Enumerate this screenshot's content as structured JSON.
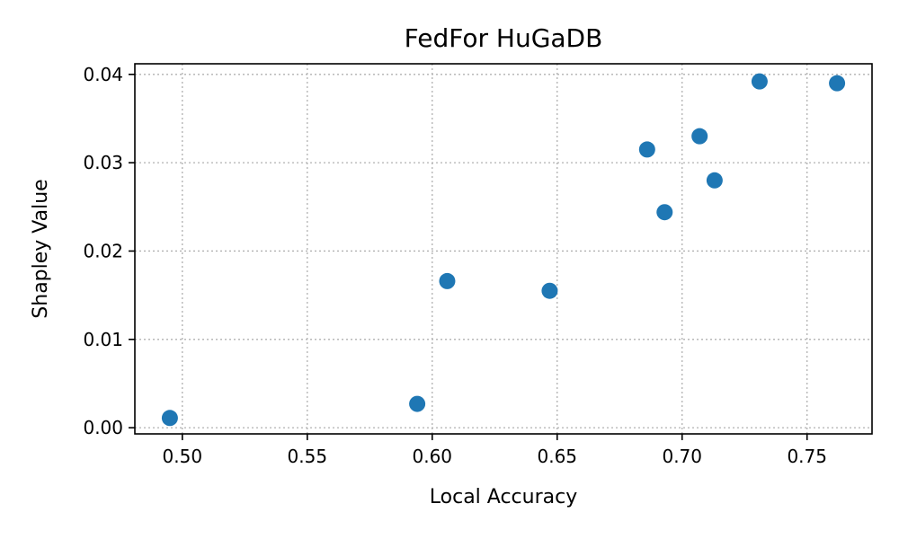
{
  "chart_data": {
    "type": "scatter",
    "title": "FedFor HuGaDB",
    "xlabel": "Local Accuracy",
    "ylabel": "Shapley Value",
    "xlim": [
      0.481,
      0.776
    ],
    "ylim": [
      -0.0007,
      0.0412
    ],
    "xticks": [
      0.5,
      0.55,
      0.6,
      0.65,
      0.7,
      0.75
    ],
    "xtick_labels": [
      "0.50",
      "0.55",
      "0.60",
      "0.65",
      "0.70",
      "0.75"
    ],
    "yticks": [
      0.0,
      0.01,
      0.02,
      0.03,
      0.04
    ],
    "ytick_labels": [
      "0.00",
      "0.01",
      "0.02",
      "0.03",
      "0.04"
    ],
    "grid": true,
    "marker_color": "#1f77b4",
    "points": [
      {
        "x": 0.495,
        "y": 0.0011
      },
      {
        "x": 0.594,
        "y": 0.0027
      },
      {
        "x": 0.606,
        "y": 0.0166
      },
      {
        "x": 0.647,
        "y": 0.0155
      },
      {
        "x": 0.686,
        "y": 0.0315
      },
      {
        "x": 0.693,
        "y": 0.0244
      },
      {
        "x": 0.707,
        "y": 0.033
      },
      {
        "x": 0.713,
        "y": 0.028
      },
      {
        "x": 0.731,
        "y": 0.0392
      },
      {
        "x": 0.762,
        "y": 0.039
      }
    ]
  }
}
